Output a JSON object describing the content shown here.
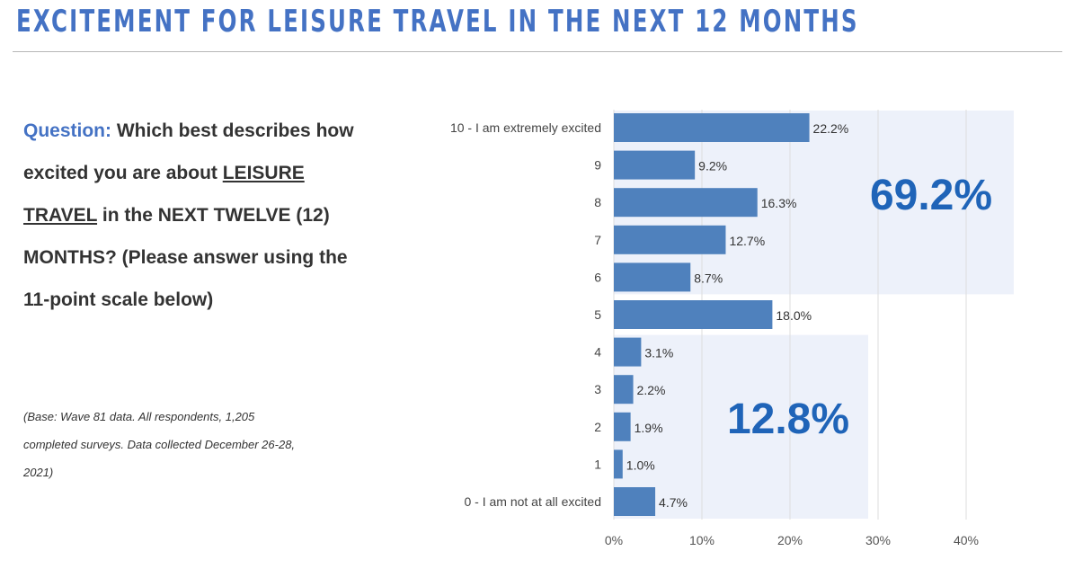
{
  "title": "EXCITEMENT FOR LEISURE TRAVEL IN THE NEXT 12 MONTHS",
  "question": {
    "label": "Question:",
    "text_before": " Which best describes how excited you are about ",
    "underlined": "LEISURE TRAVEL",
    "text_after": " in the NEXT TWELVE (12) MONTHS? (Please answer using the 11-point scale below)"
  },
  "base_note": "(Base: Wave 81 data. All respondents, 1,205 completed surveys. Data collected December 26-28, 2021)",
  "chart_data": {
    "type": "bar",
    "orientation": "horizontal",
    "categories": [
      "10 - I am extremely excited",
      "9",
      "8",
      "7",
      "6",
      "5",
      "4",
      "3",
      "2",
      "1",
      "0 - I am not at all excited"
    ],
    "values": [
      22.2,
      9.2,
      16.3,
      12.7,
      8.7,
      18.0,
      3.1,
      2.2,
      1.9,
      1.0,
      4.7
    ],
    "value_labels": [
      "22.2%",
      "9.2%",
      "16.3%",
      "12.7%",
      "8.7%",
      "18.0%",
      "3.1%",
      "2.2%",
      "1.9%",
      "1.0%",
      "4.7%"
    ],
    "xlim": [
      0,
      40
    ],
    "xticks": [
      0,
      10,
      20,
      30,
      40
    ],
    "xtick_labels": [
      "0%",
      "10%",
      "20%",
      "30%",
      "40%"
    ],
    "grid": true,
    "bar_color": "#4f81bd",
    "highlight_color": "#edf1fa",
    "groups": [
      {
        "categories": [
          "10 - I am extremely excited",
          "9",
          "8",
          "7",
          "6"
        ],
        "total_label": "69.2%"
      },
      {
        "categories": [
          "4",
          "3",
          "2",
          "1",
          "0 - I am not at all excited"
        ],
        "total_label": "12.8%"
      }
    ]
  }
}
